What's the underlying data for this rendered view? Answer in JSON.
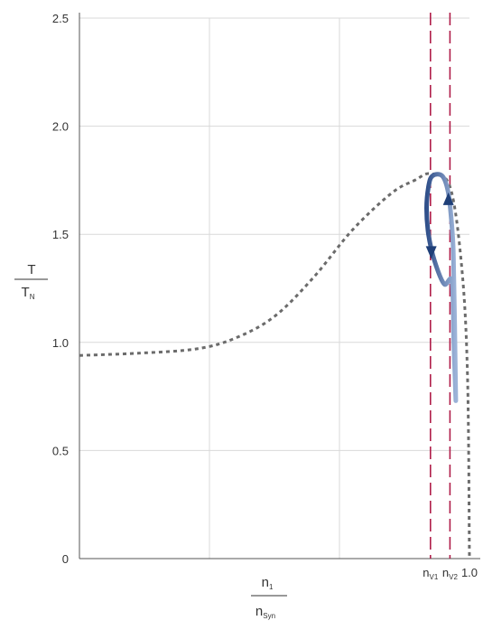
{
  "chart_data": {
    "type": "line",
    "title": "",
    "xlim": [
      0,
      1.0
    ],
    "ylim": [
      0,
      2.5
    ],
    "grid": true,
    "x_ticks": [
      {
        "value": 0.9,
        "label": "n",
        "sub": "V1"
      },
      {
        "value": 0.95,
        "label": "n",
        "sub": "V2"
      },
      {
        "value": 1.0,
        "label": "1.0",
        "sub": ""
      }
    ],
    "y_ticks": [
      {
        "value": 0,
        "label": "0"
      },
      {
        "value": 0.5,
        "label": "0.5"
      },
      {
        "value": 1.0,
        "label": "1.0"
      },
      {
        "value": 1.5,
        "label": "1.5"
      },
      {
        "value": 2.0,
        "label": "2.0"
      },
      {
        "value": 2.5,
        "label": "2.5"
      }
    ],
    "ylabel": {
      "numerator": "T",
      "denominator": "T",
      "denominator_sub": "N"
    },
    "xlabel": {
      "numerator": "n",
      "numerator_sub": "1",
      "denominator": "n",
      "denominator_sub": "Syn"
    },
    "curve": {
      "style": "dotted",
      "color": "#6b6b6b",
      "points": [
        [
          0.0,
          0.94
        ],
        [
          0.15,
          0.95
        ],
        [
          0.3,
          0.97
        ],
        [
          0.4,
          1.02
        ],
        [
          0.5,
          1.12
        ],
        [
          0.6,
          1.3
        ],
        [
          0.7,
          1.52
        ],
        [
          0.8,
          1.69
        ],
        [
          0.86,
          1.75
        ],
        [
          0.9,
          1.78
        ],
        [
          0.95,
          1.72
        ],
        [
          0.98,
          1.35
        ],
        [
          0.995,
          0.85
        ],
        [
          1.0,
          0.0
        ]
      ]
    },
    "loop": {
      "style": "solid",
      "color": "#5578b0",
      "points": [
        [
          0.965,
          0.73
        ],
        [
          0.96,
          1.0
        ],
        [
          0.955,
          1.28
        ],
        [
          0.935,
          1.27
        ],
        [
          0.91,
          1.38
        ],
        [
          0.895,
          1.5
        ],
        [
          0.89,
          1.62
        ],
        [
          0.895,
          1.72
        ],
        [
          0.905,
          1.77
        ],
        [
          0.93,
          1.77
        ],
        [
          0.945,
          1.7
        ],
        [
          0.953,
          1.58
        ],
        [
          0.958,
          1.45
        ],
        [
          0.96,
          1.3
        ],
        [
          0.962,
          1.1
        ],
        [
          0.965,
          0.73
        ]
      ],
      "arrows": [
        {
          "at": [
            0.902,
            1.42
          ],
          "direction": "down"
        },
        {
          "at": [
            0.946,
            1.66
          ],
          "direction": "up"
        }
      ]
    },
    "vertical_lines": [
      {
        "x": 0.9,
        "color": "#b01e4a"
      },
      {
        "x": 0.95,
        "color": "#b01e4a"
      }
    ]
  }
}
